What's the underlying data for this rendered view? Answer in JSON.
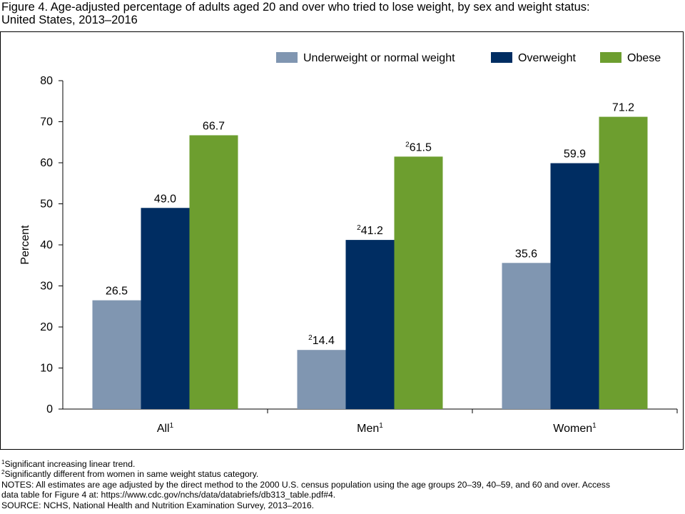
{
  "figure": {
    "title_line1": "Figure 4. Age-adjusted percentage of adults aged 20 and over who tried to lose weight, by sex and weight status:",
    "title_line2": "United States, 2013–2016"
  },
  "chart_data": {
    "type": "bar",
    "categories": [
      "All",
      "Men",
      "Women"
    ],
    "category_superscripts": [
      "1",
      "1",
      "1"
    ],
    "series": [
      {
        "name": "Underweight or normal weight",
        "color": "#8096b1",
        "values": [
          26.5,
          14.4,
          35.6
        ],
        "labels": [
          "26.5",
          "14.4",
          "35.6"
        ],
        "label_superscripts": [
          "",
          "2",
          ""
        ]
      },
      {
        "name": "Overweight",
        "color": "#002d62",
        "values": [
          49.0,
          41.2,
          59.9
        ],
        "labels": [
          "49.0",
          "41.2",
          "59.9"
        ],
        "label_superscripts": [
          "",
          "2",
          ""
        ]
      },
      {
        "name": "Obese",
        "color": "#6d9e2f",
        "values": [
          66.7,
          61.5,
          71.2
        ],
        "labels": [
          "66.7",
          "61.5",
          "71.2"
        ],
        "label_superscripts": [
          "",
          "2",
          ""
        ]
      }
    ],
    "ylabel": "Percent",
    "xlabel": "",
    "ylim": [
      0,
      80
    ],
    "yticks": [
      0,
      10,
      20,
      30,
      40,
      50,
      60,
      70,
      80
    ],
    "legend_position": "top-right",
    "grid": false
  },
  "notes": {
    "note1_mark": "1",
    "note1_text": "Significant increasing linear trend.",
    "note2_mark": "2",
    "note2_text": "Significantly different from women in same weight status category.",
    "notes_line1": "NOTES: All estimates are age adjusted by the direct method to the 2000 U.S. census population using the age groups 20–39, 40–59, and 60 and over. Access",
    "notes_line2": "data table for Figure 4 at: https://www.cdc.gov/nchs/data/databriefs/db313_table.pdf#4.",
    "source": "SOURCE: NCHS, National Health and Nutrition Examination Survey, 2013–2016."
  }
}
